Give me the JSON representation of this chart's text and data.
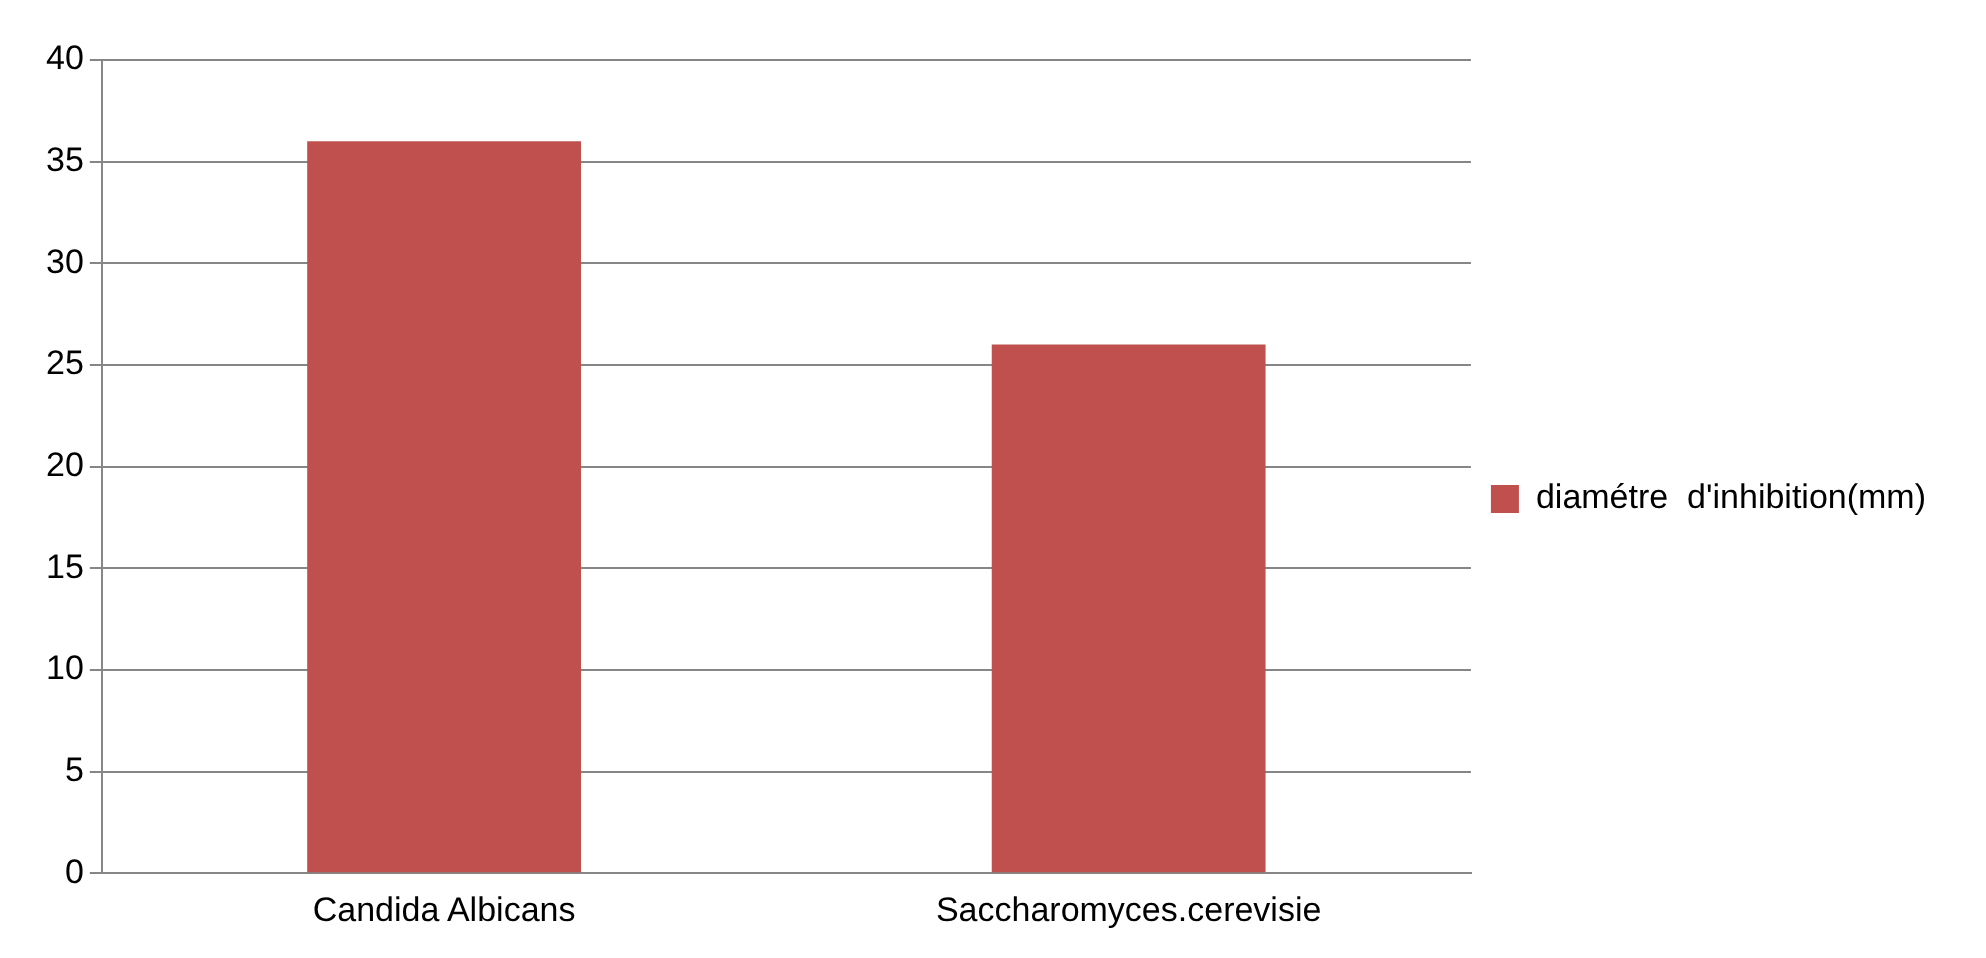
{
  "chart_data": {
    "type": "bar",
    "categories": [
      "Candida Albicans",
      "Saccharomyces.cerevisie"
    ],
    "series": [
      {
        "name": "diamétre  d'inhibition(mm)",
        "color": "#c0504d",
        "values": [
          36,
          26
        ]
      }
    ],
    "ylim": [
      0,
      40
    ],
    "yticks": [
      0,
      5,
      10,
      15,
      20,
      25,
      30,
      35,
      40
    ],
    "grid": "y",
    "legend": "right"
  }
}
